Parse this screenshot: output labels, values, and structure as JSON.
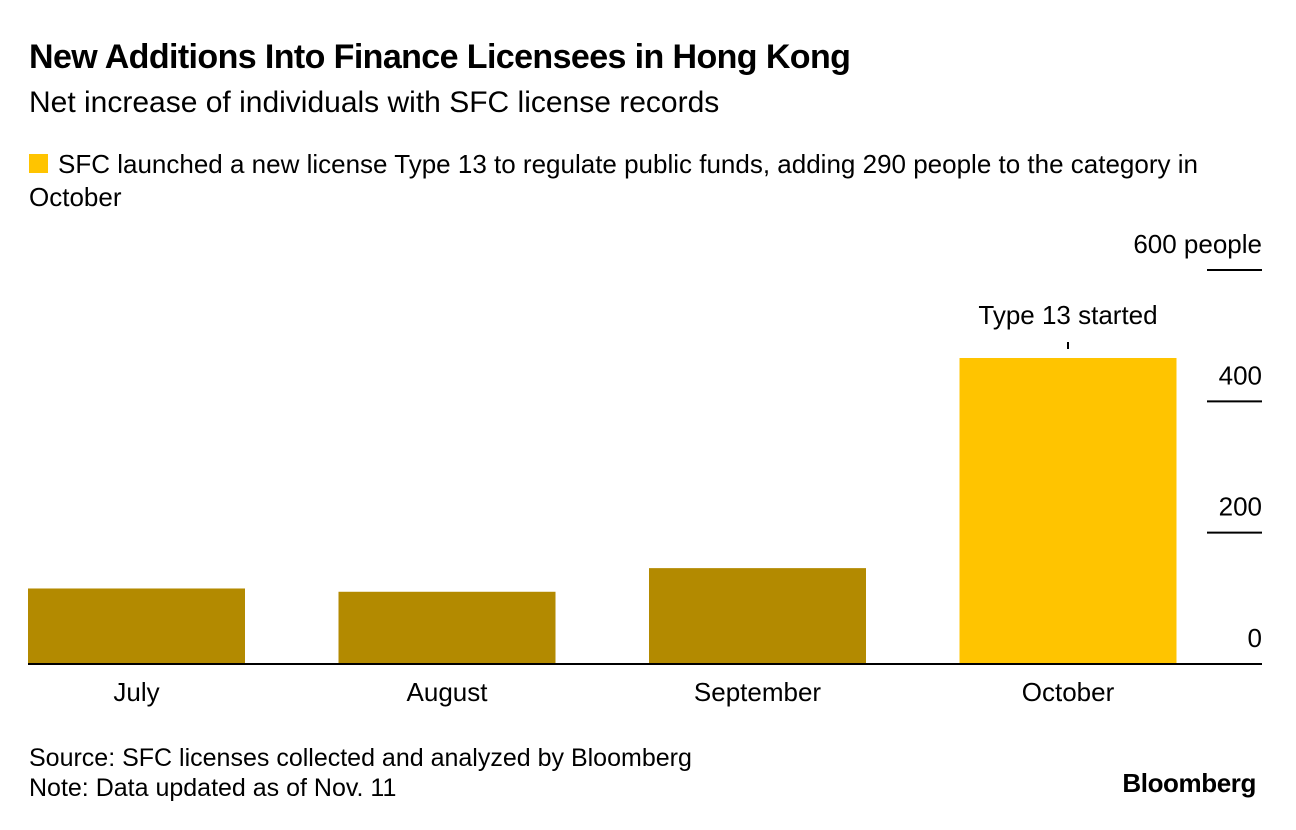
{
  "header": {
    "title": "New Additions Into Finance Licensees in Hong Kong",
    "subtitle": "Net increase of individuals with SFC license records"
  },
  "legend": {
    "text": "SFC launched a new license Type 13 to regulate public funds, adding 290 people to the category in October",
    "color": "#FFC400"
  },
  "footer": {
    "source": "Source: SFC licenses collected and analyzed by Bloomberg",
    "note": "Note: Data updated as of Nov. 11",
    "brand": "Bloomberg"
  },
  "chart_data": {
    "type": "bar",
    "title": "New Additions Into Finance Licensees in Hong Kong",
    "subtitle": "Net increase of individuals with SFC license records",
    "categories": [
      "July",
      "August",
      "September",
      "October"
    ],
    "values": [
      115,
      110,
      146,
      466
    ],
    "colors": [
      "#B38A00",
      "#B38A00",
      "#B38A00",
      "#FFC400"
    ],
    "ylim": [
      0,
      600
    ],
    "yticks": [
      0,
      200,
      400,
      600
    ],
    "ytick_labels": [
      "0",
      "200",
      "400",
      "600 people"
    ],
    "y_axis_position": "right",
    "grid": false,
    "annotations": [
      {
        "category": "October",
        "text": "Type 13 started"
      }
    ]
  }
}
